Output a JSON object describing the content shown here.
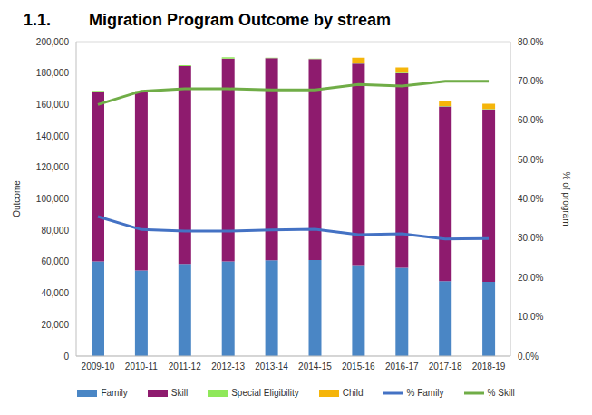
{
  "chart_data": {
    "type": "bar",
    "section": "1.1.",
    "title": "Migration Program Outcome by stream",
    "y_label": "Outcome",
    "y2_label": "% of program",
    "categories": [
      "2009-10",
      "2010-11",
      "2011-12",
      "2012-13",
      "2013-14",
      "2014-15",
      "2015-16",
      "2016-17",
      "2017-18",
      "2018-19"
    ],
    "series": [
      {
        "name": "Family",
        "type": "bar",
        "color": "#4a86c5",
        "values": [
          60300,
          54500,
          58600,
          60200,
          60900,
          61100,
          57400,
          56200,
          47700,
          47200
        ]
      },
      {
        "name": "Skill",
        "type": "bar",
        "color": "#8e1b6e",
        "values": [
          107900,
          113900,
          125800,
          129000,
          128600,
          127800,
          128600,
          123600,
          111100,
          109700
        ]
      },
      {
        "name": "Special Eligibility",
        "type": "bar",
        "color": "#8fe85a",
        "values": [
          500,
          400,
          600,
          800,
          250,
          250,
          300,
          400,
          250,
          250
        ]
      },
      {
        "name": "Child",
        "type": "bar",
        "color": "#f5b50a",
        "values": [
          0,
          0,
          0,
          0,
          0,
          0,
          3400,
          3400,
          3350,
          3350
        ]
      },
      {
        "name": "% Family",
        "type": "line",
        "axis": "y2",
        "color": "#4472c4",
        "values": [
          35.5,
          32.2,
          31.8,
          31.8,
          32.1,
          32.3,
          30.9,
          31.1,
          29.8,
          29.9
        ]
      },
      {
        "name": "% Skill",
        "type": "line",
        "axis": "y2",
        "color": "#70ad47",
        "values": [
          64.0,
          67.4,
          68.0,
          68.0,
          67.7,
          67.7,
          69.1,
          68.7,
          69.9,
          69.9
        ]
      }
    ],
    "stacked": true,
    "grid": true,
    "legend": "bottom",
    "ylim": [
      0,
      200000
    ],
    "yticks": [
      0,
      {
        "value": 20000,
        "label": "20,000"
      },
      {
        "value": 40000,
        "label": "40,000"
      },
      {
        "value": 60000,
        "label": "60,000"
      },
      {
        "value": 80000,
        "label": "80,000"
      },
      {
        "value": 100000,
        "label": "100,000"
      },
      {
        "value": 120000,
        "label": "120,000"
      },
      {
        "value": 140000,
        "label": "140,000"
      },
      {
        "value": 160000,
        "label": "160,000"
      },
      {
        "value": 180000,
        "label": "180,000"
      },
      {
        "value": 200000,
        "label": "200,000"
      }
    ],
    "y2lim": [
      0,
      80
    ],
    "y2ticks": [
      {
        "value": 0,
        "label": "0.0%"
      },
      {
        "value": 10,
        "label": "10.0%"
      },
      {
        "value": 20,
        "label": "20.0%"
      },
      {
        "value": 30,
        "label": "30.0%"
      },
      {
        "value": 40,
        "label": "40.0%"
      },
      {
        "value": 50,
        "label": "50.0%"
      },
      {
        "value": 60,
        "label": "60.0%"
      },
      {
        "value": 70,
        "label": "70.0%"
      },
      {
        "value": 80,
        "label": "80.0%"
      }
    ]
  }
}
